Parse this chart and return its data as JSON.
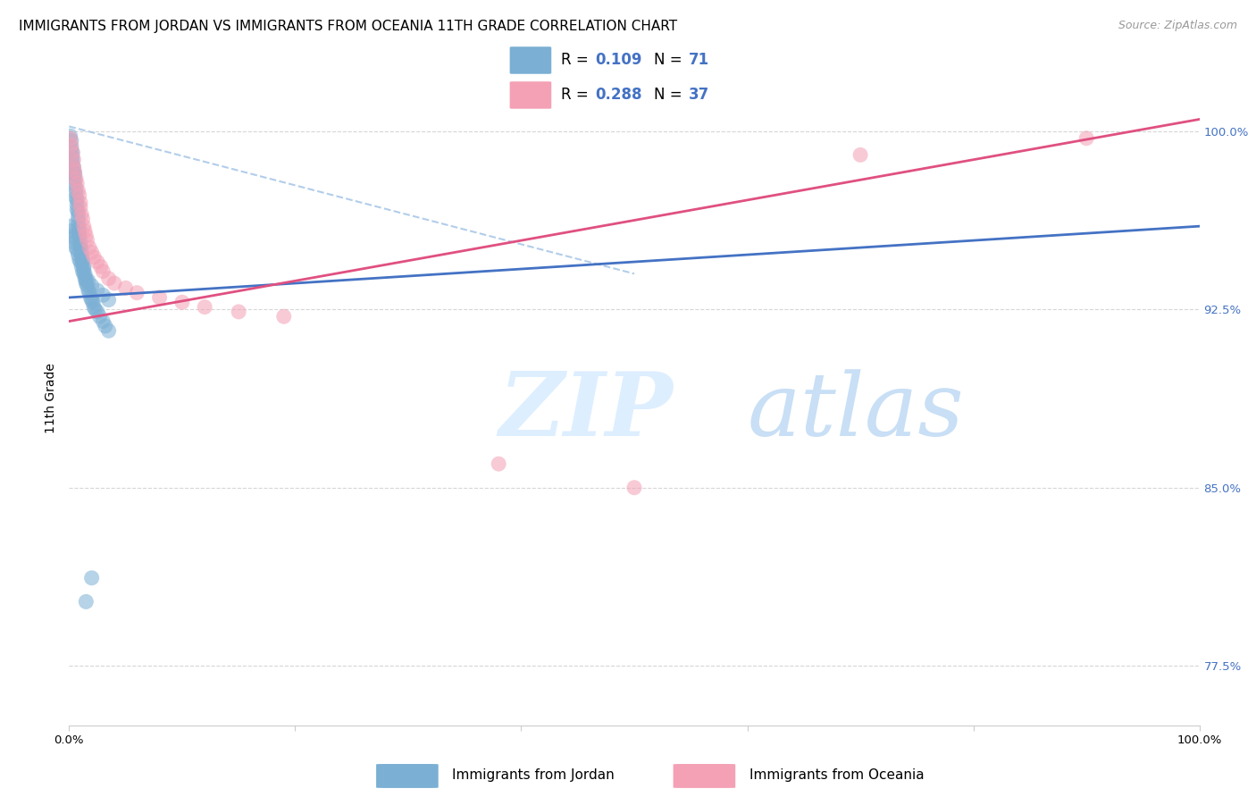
{
  "title": "IMMIGRANTS FROM JORDAN VS IMMIGRANTS FROM OCEANIA 11TH GRADE CORRELATION CHART",
  "source": "Source: ZipAtlas.com",
  "ylabel": "11th Grade",
  "r_jordan": 0.109,
  "n_jordan": 71,
  "r_oceania": 0.288,
  "n_oceania": 37,
  "xlim": [
    0.0,
    1.0
  ],
  "ylim": [
    0.75,
    1.025
  ],
  "yticks": [
    0.775,
    0.85,
    0.925,
    1.0
  ],
  "ytick_labels": [
    "77.5%",
    "85.0%",
    "92.5%",
    "100.0%"
  ],
  "xtick_labels": [
    "0.0%",
    "",
    "",
    "",
    "",
    "100.0%"
  ],
  "color_jordan": "#7bafd4",
  "color_oceania": "#f4a0b5",
  "line_color_jordan": "#4472c4",
  "line_color_oceania": "#e05080",
  "legend_label_jordan": "Immigrants from Jordan",
  "legend_label_oceania": "Immigrants from Oceania",
  "jordan_x": [
    0.001,
    0.002,
    0.002,
    0.003,
    0.003,
    0.003,
    0.004,
    0.004,
    0.005,
    0.005,
    0.005,
    0.006,
    0.006,
    0.006,
    0.007,
    0.007,
    0.007,
    0.008,
    0.008,
    0.008,
    0.008,
    0.009,
    0.009,
    0.009,
    0.01,
    0.01,
    0.01,
    0.011,
    0.011,
    0.012,
    0.012,
    0.013,
    0.013,
    0.014,
    0.014,
    0.015,
    0.015,
    0.016,
    0.017,
    0.018,
    0.019,
    0.02,
    0.021,
    0.022,
    0.023,
    0.025,
    0.027,
    0.03,
    0.032,
    0.035,
    0.001,
    0.002,
    0.003,
    0.004,
    0.005,
    0.006,
    0.007,
    0.008,
    0.009,
    0.01,
    0.011,
    0.012,
    0.013,
    0.015,
    0.017,
    0.02,
    0.025,
    0.03,
    0.035,
    0.015,
    0.02
  ],
  "jordan_y": [
    0.998,
    0.996,
    0.993,
    0.991,
    0.989,
    0.987,
    0.985,
    0.983,
    0.982,
    0.98,
    0.978,
    0.976,
    0.974,
    0.972,
    0.971,
    0.969,
    0.967,
    0.966,
    0.964,
    0.962,
    0.96,
    0.959,
    0.957,
    0.956,
    0.954,
    0.952,
    0.951,
    0.95,
    0.948,
    0.946,
    0.945,
    0.943,
    0.942,
    0.94,
    0.938,
    0.937,
    0.936,
    0.935,
    0.933,
    0.932,
    0.93,
    0.929,
    0.928,
    0.926,
    0.925,
    0.924,
    0.922,
    0.92,
    0.918,
    0.916,
    0.96,
    0.958,
    0.956,
    0.955,
    0.953,
    0.951,
    0.95,
    0.948,
    0.946,
    0.945,
    0.943,
    0.941,
    0.94,
    0.938,
    0.937,
    0.935,
    0.933,
    0.931,
    0.929,
    0.802,
    0.812
  ],
  "oceania_x": [
    0.001,
    0.002,
    0.003,
    0.004,
    0.004,
    0.005,
    0.006,
    0.007,
    0.008,
    0.009,
    0.01,
    0.01,
    0.011,
    0.012,
    0.013,
    0.014,
    0.015,
    0.016,
    0.018,
    0.02,
    0.022,
    0.025,
    0.028,
    0.03,
    0.035,
    0.04,
    0.05,
    0.06,
    0.08,
    0.1,
    0.12,
    0.15,
    0.19,
    0.38,
    0.5,
    0.7,
    0.9
  ],
  "oceania_y": [
    0.997,
    0.994,
    0.991,
    0.988,
    0.985,
    0.983,
    0.98,
    0.978,
    0.975,
    0.973,
    0.97,
    0.968,
    0.965,
    0.963,
    0.96,
    0.958,
    0.956,
    0.954,
    0.951,
    0.949,
    0.947,
    0.945,
    0.943,
    0.941,
    0.938,
    0.936,
    0.934,
    0.932,
    0.93,
    0.928,
    0.926,
    0.924,
    0.922,
    0.86,
    0.85,
    0.99,
    0.997
  ],
  "jordan_line_x0": 0.0,
  "jordan_line_x1": 1.0,
  "jordan_line_y0": 0.93,
  "jordan_line_y1": 0.96,
  "oceania_line_x0": 0.0,
  "oceania_line_x1": 1.0,
  "oceania_line_y0": 0.92,
  "oceania_line_y1": 1.005,
  "dash_line_x0": 0.0,
  "dash_line_x1": 0.5,
  "dash_line_y0": 1.002,
  "dash_line_y1": 0.94,
  "background_color": "#ffffff",
  "grid_color": "#cccccc",
  "title_fontsize": 11,
  "axis_label_fontsize": 10,
  "tick_fontsize": 9.5,
  "right_tick_color": "#4472c4",
  "watermark_color": "#ddeeff"
}
